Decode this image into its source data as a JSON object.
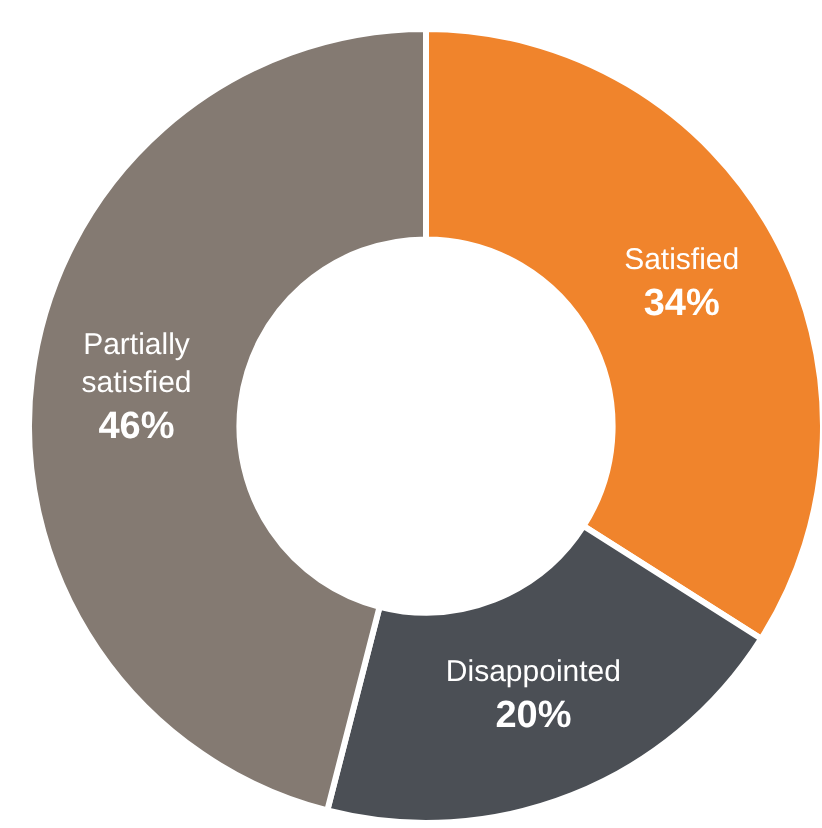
{
  "chart_data": {
    "type": "donut",
    "categories": [
      "Satisfied",
      "Disappointed",
      "Partially satisfied"
    ],
    "values": [
      34,
      20,
      46
    ],
    "value_labels": [
      "34%",
      "20%",
      "46%"
    ],
    "colors": [
      "#f0842c",
      "#4b4f55",
      "#847a72"
    ],
    "legend": false
  }
}
